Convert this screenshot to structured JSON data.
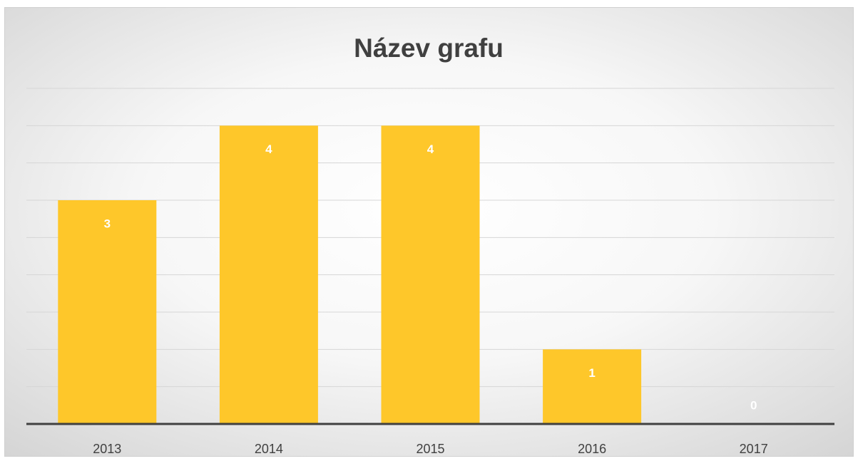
{
  "chart_data": {
    "type": "bar",
    "title": "Název grafu",
    "categories": [
      "2013",
      "2014",
      "2015",
      "2016",
      "2017"
    ],
    "values": [
      3,
      4,
      4,
      1,
      0
    ],
    "color": "#fec72a",
    "ylim": [
      0,
      4.5
    ],
    "yticks": [
      0,
      0.5,
      1,
      1.5,
      2,
      2.5,
      3,
      3.5,
      4,
      4.5
    ],
    "grid": true,
    "data_labels": true
  }
}
